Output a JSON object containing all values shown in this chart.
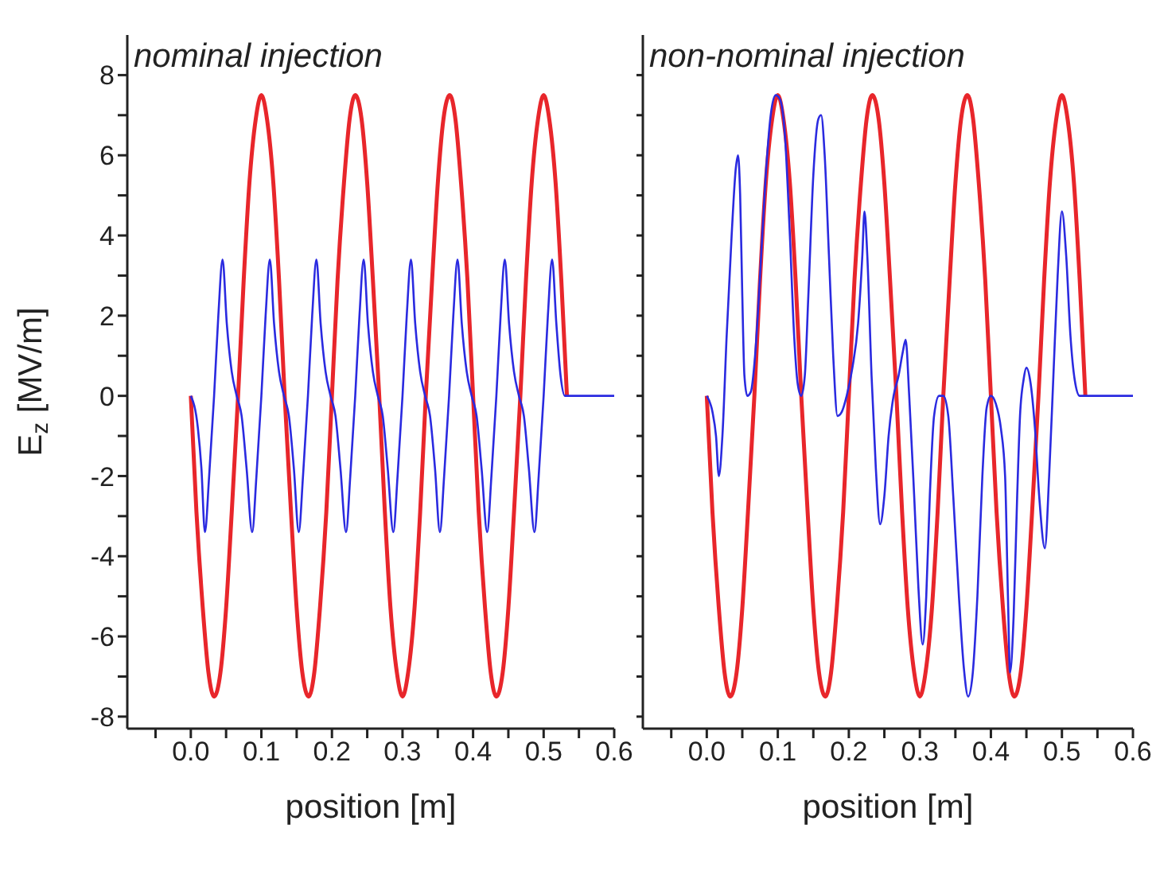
{
  "chart_data": [
    {
      "type": "line",
      "xlabel": "position [m]",
      "ylabel": "E$_{z}$ [MV/m]",
      "annotations": [
        "nominal injection"
      ],
      "xlim": [
        -0.09,
        0.6
      ],
      "ylim": [
        -8.3,
        9
      ],
      "xticks": [
        {
          "value": -0.05,
          "label": null
        },
        {
          "value": 0,
          "label": "0.0"
        },
        {
          "value": 0.05,
          "label": null
        },
        0.1,
        {
          "value": 0.15,
          "label": null
        },
        0.2,
        {
          "value": 0.25,
          "label": null
        },
        0.3,
        {
          "value": 0.35,
          "label": null
        },
        0.4,
        {
          "value": 0.45,
          "label": null
        },
        0.5,
        {
          "value": 0.55,
          "label": null
        },
        0.6
      ],
      "yticks": [
        -8,
        {
          "value": -7,
          "label": null
        },
        -6,
        {
          "value": -5,
          "label": null
        },
        -4,
        {
          "value": -3,
          "label": null
        },
        -2,
        {
          "value": -1,
          "label": null
        },
        0,
        {
          "value": 1,
          "label": null
        },
        2,
        {
          "value": 3,
          "label": null
        },
        4,
        {
          "value": 5,
          "label": null
        },
        6,
        {
          "value": 7,
          "label": null
        },
        8
      ],
      "series": [
        {
          "color": "#e8262b",
          "x": [
            0,
            0.008,
            0.017,
            0.025,
            0.033,
            0.042,
            0.05,
            0.058,
            0.067,
            0.075,
            0.083,
            0.092,
            0.1,
            0.108,
            0.117,
            0.125,
            0.133,
            0.142,
            0.15,
            0.158,
            0.167,
            0.175,
            0.183,
            0.192,
            0.2,
            0.208,
            0.217,
            0.225,
            0.233,
            0.242,
            0.25,
            0.258,
            0.267,
            0.275,
            0.283,
            0.292,
            0.3,
            0.308,
            0.317,
            0.325,
            0.333,
            0.342,
            0.35,
            0.358,
            0.367,
            0.375,
            0.383,
            0.392,
            0.4,
            0.408,
            0.417,
            0.425,
            0.433,
            0.442,
            0.45,
            0.458,
            0.467,
            0.475,
            0.483,
            0.492,
            0.5,
            0.508,
            0.517,
            0.525,
            0.533
          ],
          "values": [
            0,
            -2.9,
            -5.3,
            -6.9,
            -7.5,
            -6.9,
            -5.3,
            -2.9,
            0,
            2.9,
            5.3,
            6.9,
            7.5,
            6.9,
            5.3,
            2.9,
            0,
            -2.9,
            -5.3,
            -6.9,
            -7.5,
            -6.9,
            -5.3,
            -2.9,
            0,
            2.9,
            5.3,
            6.9,
            7.5,
            6.9,
            5.3,
            2.9,
            0,
            -2.9,
            -5.3,
            -6.9,
            -7.5,
            -6.9,
            -5.3,
            -2.9,
            0,
            2.9,
            5.3,
            6.9,
            7.5,
            6.9,
            5.3,
            2.9,
            0,
            -2.9,
            -5.3,
            -6.9,
            -7.5,
            -6.9,
            -5.3,
            -2.9,
            0,
            2.9,
            5.3,
            6.9,
            7.5,
            6.9,
            5.3,
            2.9,
            0
          ]
        },
        {
          "color": "#2a2ae0",
          "x": [
            0,
            0.01,
            0.015,
            0.02,
            0.026,
            0.033,
            0.039,
            0.045,
            0.051,
            0.058,
            0.065,
            0.072,
            0.079,
            0.087,
            0.093,
            0.1,
            0.106,
            0.112,
            0.118,
            0.125,
            0.132,
            0.139,
            0.146,
            0.153,
            0.159,
            0.166,
            0.172,
            0.178,
            0.184,
            0.191,
            0.198,
            0.205,
            0.212,
            0.22,
            0.226,
            0.233,
            0.239,
            0.245,
            0.251,
            0.258,
            0.265,
            0.272,
            0.279,
            0.287,
            0.293,
            0.3,
            0.306,
            0.312,
            0.318,
            0.325,
            0.332,
            0.339,
            0.346,
            0.353,
            0.359,
            0.366,
            0.372,
            0.378,
            0.384,
            0.391,
            0.398,
            0.405,
            0.412,
            0.42,
            0.426,
            0.433,
            0.439,
            0.445,
            0.451,
            0.458,
            0.465,
            0.472,
            0.479,
            0.487,
            0.493,
            0.5,
            0.506,
            0.512,
            0.518,
            0.524,
            0.53,
            0.6
          ],
          "values": [
            0,
            -0.8,
            -1.8,
            -3.4,
            -2,
            0,
            2,
            3.4,
            1.8,
            0.6,
            0,
            -0.5,
            -1.8,
            -3.4,
            -2,
            0,
            2,
            3.4,
            1.8,
            0.6,
            0,
            -0.5,
            -1.8,
            -3.4,
            -2,
            0,
            2,
            3.4,
            1.8,
            0.6,
            0,
            -0.5,
            -1.8,
            -3.4,
            -2,
            0,
            2,
            3.4,
            1.8,
            0.6,
            0,
            -0.5,
            -1.8,
            -3.4,
            -2,
            0,
            2,
            3.4,
            1.8,
            0.6,
            0,
            -0.5,
            -1.8,
            -3.4,
            -2,
            0,
            2,
            3.4,
            1.8,
            0.6,
            0,
            -0.5,
            -1.8,
            -3.4,
            -2,
            0,
            2,
            3.4,
            1.8,
            0.6,
            0,
            -0.5,
            -1.8,
            -3.4,
            -2,
            0,
            2,
            3.4,
            1.8,
            0.5,
            0,
            0
          ]
        }
      ]
    },
    {
      "type": "line",
      "xlabel": "position [m]",
      "annotations": [
        "non-nominal injection"
      ],
      "tick_labels": "x",
      "xlim": [
        -0.09,
        0.6
      ],
      "ylim": [
        -8.3,
        9
      ],
      "xticks": [
        {
          "value": -0.05,
          "label": null
        },
        {
          "value": 0,
          "label": "0.0"
        },
        {
          "value": 0.05,
          "label": null
        },
        0.1,
        {
          "value": 0.15,
          "label": null
        },
        0.2,
        {
          "value": 0.25,
          "label": null
        },
        0.3,
        {
          "value": 0.35,
          "label": null
        },
        0.4,
        {
          "value": 0.45,
          "label": null
        },
        0.5,
        {
          "value": 0.55,
          "label": null
        },
        0.6
      ],
      "yticks": [
        -8,
        {
          "value": -7,
          "label": null
        },
        -6,
        {
          "value": -5,
          "label": null
        },
        -4,
        {
          "value": -3,
          "label": null
        },
        -2,
        {
          "value": -1,
          "label": null
        },
        0,
        {
          "value": 1,
          "label": null
        },
        2,
        {
          "value": 3,
          "label": null
        },
        4,
        {
          "value": 5,
          "label": null
        },
        6,
        {
          "value": 7,
          "label": null
        },
        8
      ],
      "series": [
        {
          "color": "#e8262b",
          "x": [
            0,
            0.008,
            0.017,
            0.025,
            0.033,
            0.042,
            0.05,
            0.058,
            0.067,
            0.075,
            0.083,
            0.092,
            0.1,
            0.108,
            0.117,
            0.125,
            0.133,
            0.142,
            0.15,
            0.158,
            0.167,
            0.175,
            0.183,
            0.192,
            0.2,
            0.208,
            0.217,
            0.225,
            0.233,
            0.242,
            0.25,
            0.258,
            0.267,
            0.275,
            0.283,
            0.292,
            0.3,
            0.308,
            0.317,
            0.325,
            0.333,
            0.342,
            0.35,
            0.358,
            0.367,
            0.375,
            0.383,
            0.392,
            0.4,
            0.408,
            0.417,
            0.425,
            0.433,
            0.442,
            0.45,
            0.458,
            0.467,
            0.475,
            0.483,
            0.492,
            0.5,
            0.508,
            0.517,
            0.525,
            0.533
          ],
          "values": [
            0,
            -2.9,
            -5.3,
            -6.9,
            -7.5,
            -6.9,
            -5.3,
            -2.9,
            0,
            2.9,
            5.3,
            6.9,
            7.5,
            6.9,
            5.3,
            2.9,
            0,
            -2.9,
            -5.3,
            -6.9,
            -7.5,
            -6.9,
            -5.3,
            -2.9,
            0,
            2.9,
            5.3,
            6.9,
            7.5,
            6.9,
            5.3,
            2.9,
            0,
            -2.9,
            -5.3,
            -6.9,
            -7.5,
            -6.9,
            -5.3,
            -2.9,
            0,
            2.9,
            5.3,
            6.9,
            7.5,
            6.9,
            5.3,
            2.9,
            0,
            -2.9,
            -5.3,
            -6.9,
            -7.5,
            -6.9,
            -5.3,
            -2.9,
            0,
            2.9,
            5.3,
            6.9,
            7.5,
            6.9,
            5.3,
            2.9,
            0
          ]
        },
        {
          "color": "#2a2ae0",
          "x": [
            0,
            0.008,
            0.013,
            0.017,
            0.022,
            0.028,
            0.035,
            0.041,
            0.044,
            0.047,
            0.05,
            0.053,
            0.057,
            0.062,
            0.068,
            0.075,
            0.083,
            0.09,
            0.097,
            0.103,
            0.11,
            0.117,
            0.123,
            0.128,
            0.133,
            0.138,
            0.143,
            0.15,
            0.157,
            0.161,
            0.166,
            0.172,
            0.178,
            0.184,
            0.19,
            0.197,
            0.205,
            0.213,
            0.219,
            0.222,
            0.226,
            0.232,
            0.238,
            0.244,
            0.25,
            0.256,
            0.263,
            0.27,
            0.276,
            0.28,
            0.285,
            0.292,
            0.298,
            0.304,
            0.309,
            0.314,
            0.32,
            0.327,
            0.333,
            0.34,
            0.347,
            0.355,
            0.362,
            0.368,
            0.374,
            0.381,
            0.388,
            0.394,
            0.4,
            0.407,
            0.414,
            0.42,
            0.424,
            0.427,
            0.432,
            0.437,
            0.441,
            0.446,
            0.45,
            0.456,
            0.462,
            0.468,
            0.476,
            0.482,
            0.488,
            0.494,
            0.5,
            0.506,
            0.512,
            0.518,
            0.525,
            0.6
          ],
          "values": [
            0,
            -0.4,
            -1,
            -2,
            -1,
            1.5,
            4,
            5.7,
            6,
            5,
            2.5,
            0.5,
            0,
            0.1,
            1,
            3,
            5.5,
            7,
            7.5,
            7.4,
            6.5,
            4,
            1.5,
            0.3,
            0,
            0.5,
            2.5,
            5.5,
            6.9,
            7,
            6,
            3.5,
            1,
            -0.5,
            -0.4,
            0,
            0.7,
            1.8,
            3.5,
            4.6,
            3.5,
            0.5,
            -1.8,
            -3.2,
            -2.5,
            -1,
            0,
            0.5,
            1.1,
            1.4,
            0,
            -2.5,
            -4.8,
            -6.2,
            -5,
            -2.5,
            -0.5,
            0,
            0,
            -0.5,
            -2.5,
            -5,
            -6.8,
            -7.5,
            -7,
            -5,
            -2,
            -0.3,
            0,
            -0.2,
            -0.8,
            -2,
            -5,
            -6.9,
            -5.5,
            -2.5,
            -0.5,
            0.4,
            0.7,
            0.3,
            -0.8,
            -2.5,
            -3.8,
            -2,
            0.5,
            3,
            4.6,
            3.5,
            1.5,
            0.4,
            0,
            0
          ]
        }
      ]
    }
  ]
}
